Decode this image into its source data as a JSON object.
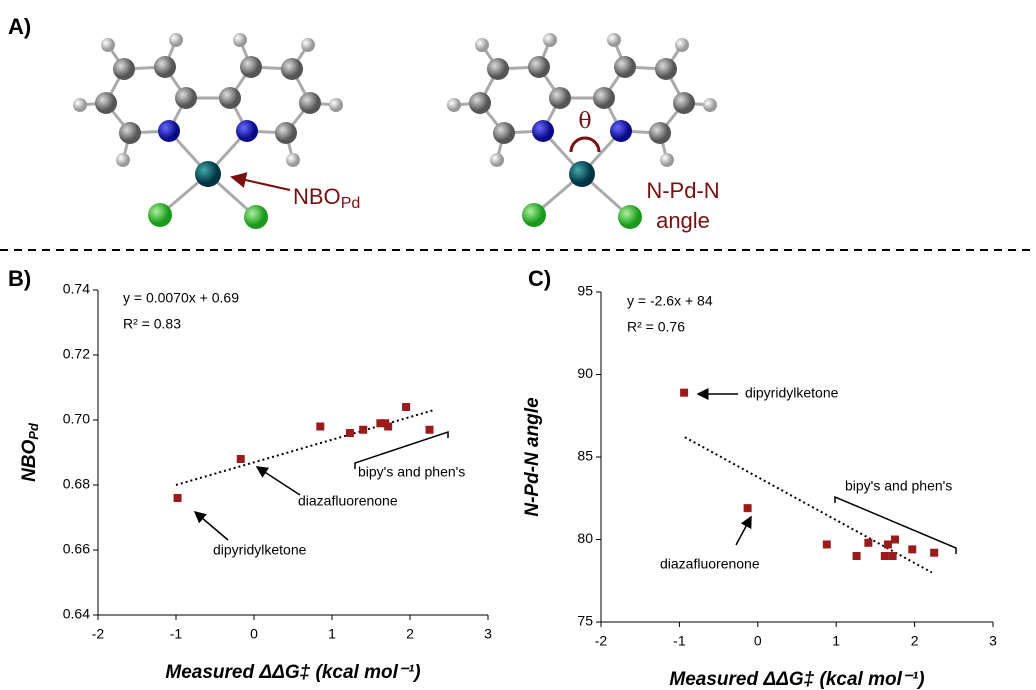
{
  "panel_a": {
    "label": "A)",
    "left_label": "NBO",
    "left_label_sub": "Pd",
    "theta": "θ",
    "right_label": [
      "N-Pd-N",
      "angle"
    ]
  },
  "chart_data": [
    {
      "type": "scatter",
      "panel": "B)",
      "x_label": "Measured ΔΔG‡ (kcal mol⁻¹)",
      "y_label": [
        "NBO",
        "Pd"
      ],
      "color": "#9b1b1b",
      "x": [
        -0.98,
        -0.17,
        0.85,
        1.23,
        1.4,
        1.62,
        1.68,
        1.72,
        1.95,
        2.25
      ],
      "values": [
        0.676,
        0.688,
        0.698,
        0.696,
        0.697,
        0.699,
        0.699,
        0.698,
        0.704,
        0.697
      ],
      "trendline": {
        "x": [
          -1,
          2.3
        ],
        "y": [
          0.68,
          0.703
        ]
      },
      "xlim": [
        -2,
        3
      ],
      "xticks": [
        -2,
        -1,
        0,
        1,
        2,
        3
      ],
      "ylim": [
        0.64,
        0.74
      ],
      "yticks": [
        0.64,
        0.66,
        0.68,
        {
          "value": 0.7,
          "label": "0.70"
        },
        0.72,
        0.74
      ],
      "annotations": [
        "y = 0.0070x + 0.69",
        "R² = 0.83",
        "bipy's and phen's",
        "diazafluorenone",
        "dipyridylketone"
      ]
    },
    {
      "type": "scatter",
      "panel": "C)",
      "x_label": "Measured ΔΔG‡ (kcal mol⁻¹)",
      "y_label": [
        "N-Pd-N angle"
      ],
      "color": "#9b1b1b",
      "x": [
        -0.94,
        -0.13,
        0.88,
        1.26,
        1.41,
        1.62,
        1.66,
        1.72,
        1.75,
        1.97,
        2.25
      ],
      "values": [
        88.9,
        81.9,
        79.7,
        79.0,
        79.8,
        79.0,
        79.7,
        79.0,
        80.0,
        79.4,
        79.2
      ],
      "trendline": {
        "x": [
          -0.93,
          2.22
        ],
        "y": [
          86.2,
          78.0
        ]
      },
      "xlim": [
        -2,
        3
      ],
      "xticks": [
        -2,
        -1,
        0,
        1,
        2,
        3
      ],
      "ylim": [
        75,
        95
      ],
      "yticks": [
        75,
        80,
        85,
        90,
        95
      ],
      "annotations": [
        "y = -2.6x + 84",
        "R² = 0.76",
        "dipyridylketone",
        "bipy's and phen's",
        "diazafluorenone"
      ]
    }
  ]
}
